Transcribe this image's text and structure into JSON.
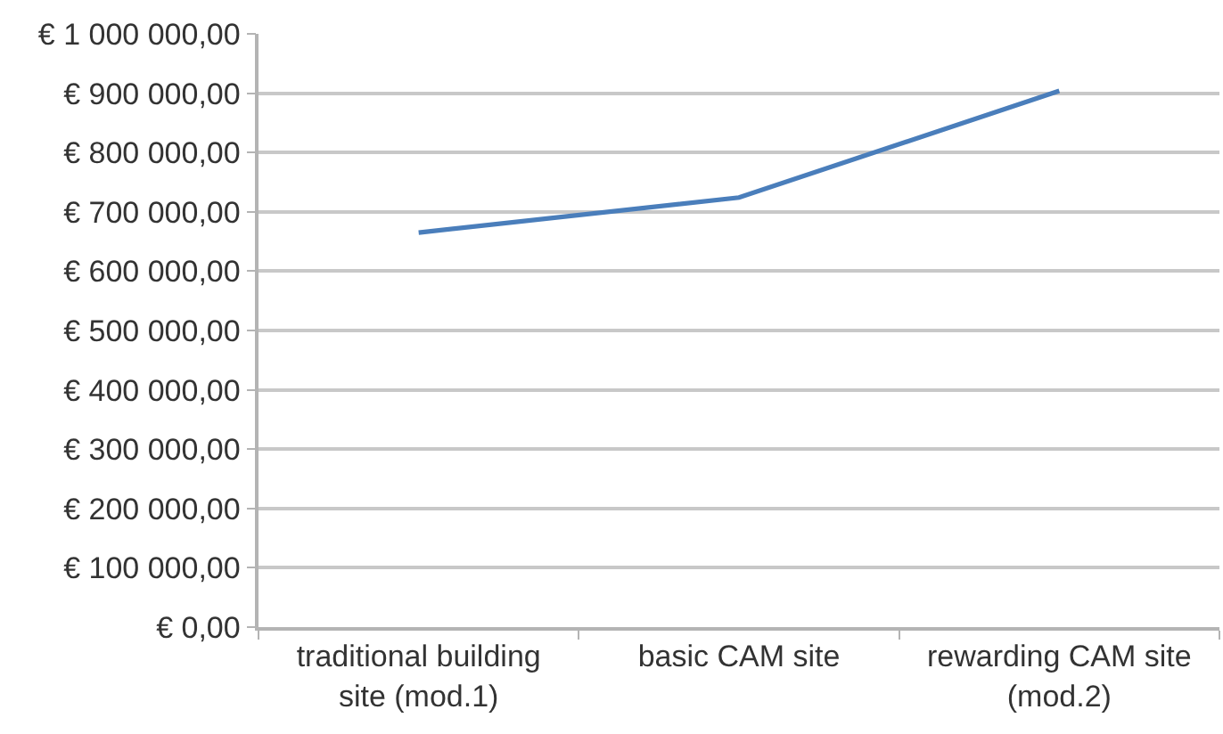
{
  "chart_data": {
    "type": "line",
    "categories": [
      "traditional building site (mod.1)",
      "basic CAM site",
      "rewarding CAM site (mod.2)"
    ],
    "series": [
      {
        "color": "#4a7ebb",
        "values": [
          665000,
          724000,
          904000
        ]
      }
    ],
    "ylim": [
      0,
      1000000
    ],
    "yticks": [
      {
        "value": 0,
        "label": "€ 0,00"
      },
      {
        "value": 100000,
        "label": "€ 100 000,00"
      },
      {
        "value": 200000,
        "label": "€ 200 000,00"
      },
      {
        "value": 300000,
        "label": "€ 300 000,00"
      },
      {
        "value": 400000,
        "label": "€ 400 000,00"
      },
      {
        "value": 500000,
        "label": "€ 500 000,00"
      },
      {
        "value": 600000,
        "label": "€ 600 000,00"
      },
      {
        "value": 700000,
        "label": "€ 700 000,00"
      },
      {
        "value": 800000,
        "label": "€ 800 000,00"
      },
      {
        "value": 900000,
        "label": "€ 900 000,00"
      },
      {
        "value": 1000000,
        "label": "€ 1 000 000,00"
      }
    ],
    "grid": "y",
    "marker": "none",
    "line_style": "solid"
  }
}
